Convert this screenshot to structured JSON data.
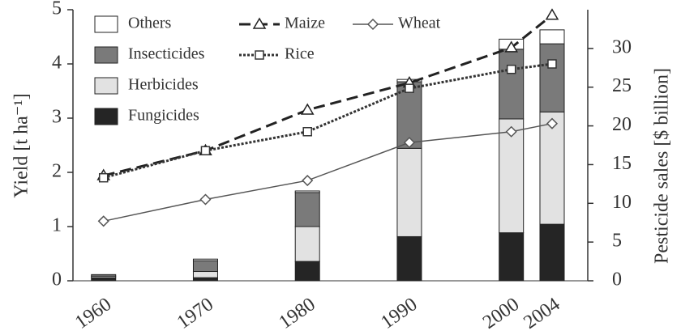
{
  "chart_data": {
    "type": "bar",
    "x": [
      1960,
      1970,
      1980,
      1990,
      2000,
      2004
    ],
    "xlim": [
      1957,
      2007.5
    ],
    "xticks": [
      1960,
      1970,
      1980,
      1990,
      2000,
      2004
    ],
    "ylabel": "Yield [t ha⁻¹]",
    "y2label": "Pesticide sales [$ billion]",
    "ylim": [
      0,
      5
    ],
    "yticks": [
      0,
      1,
      2,
      3,
      4,
      5
    ],
    "y2lim": [
      0,
      35
    ],
    "y2ticks": [
      0,
      5,
      10,
      15,
      20,
      25,
      30
    ],
    "series": [
      {
        "name": "Fungicides",
        "type": "bar",
        "axis": "y2",
        "color": "#252525",
        "values": [
          0.4,
          0.4,
          2.5,
          5.7,
          6.2,
          7.3
        ]
      },
      {
        "name": "Herbicides",
        "type": "bar",
        "axis": "y2",
        "color": "#e2e2e2",
        "values": [
          0.2,
          0.8,
          4.5,
          11.4,
          14.7,
          14.5
        ]
      },
      {
        "name": "Insecticides",
        "type": "bar",
        "axis": "y2",
        "color": "#7a7a7a",
        "values": [
          0.2,
          1.4,
          4.4,
          8.6,
          9.0,
          8.8
        ]
      },
      {
        "name": "Others",
        "type": "bar",
        "axis": "y2",
        "color": "#ffffff",
        "values": [
          0,
          0.2,
          0.2,
          0.3,
          1.3,
          1.8
        ]
      },
      {
        "name": "Maize",
        "type": "line",
        "marker": "triangle",
        "dash": "14,7",
        "color": "#222222",
        "values": [
          1.94,
          2.4,
          3.15,
          3.65,
          4.3,
          4.9
        ]
      },
      {
        "name": "Wheat",
        "type": "line",
        "marker": "diamond",
        "color": "#555555",
        "values": [
          1.1,
          1.5,
          1.85,
          2.55,
          2.75,
          2.9
        ]
      },
      {
        "name": "Rice",
        "type": "line",
        "marker": "square",
        "dash": "3,2",
        "color": "#333333",
        "values": [
          1.9,
          2.4,
          2.75,
          3.55,
          3.9,
          4.0
        ]
      }
    ]
  }
}
